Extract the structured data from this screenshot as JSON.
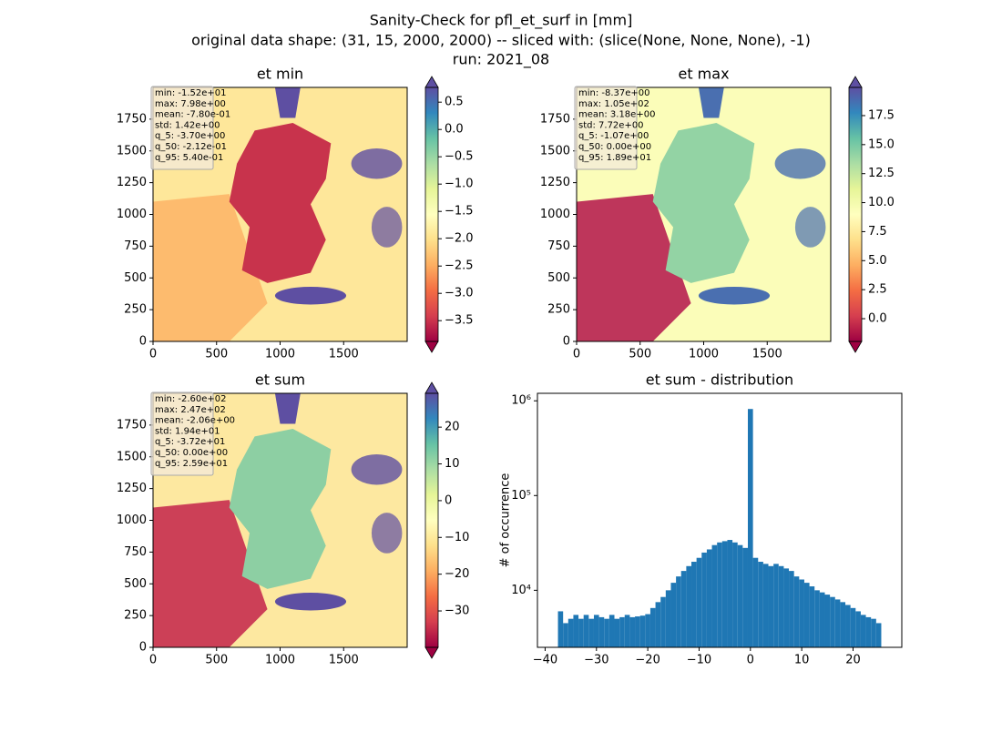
{
  "suptitle": [
    "Sanity-Check for pfl_et_surf in [mm]",
    "original data shape: (31, 15, 2000, 2000) -- sliced with: (slice(None, None, None), -1)",
    "run: 2021_08"
  ],
  "chart_data": [
    {
      "type": "heatmap",
      "title": "et min",
      "stats": [
        "min: -1.52e+01",
        "max: 7.98e+00",
        "mean: -7.80e-01",
        "std: 1.42e+00",
        "q_5: -3.70e+00",
        "q_50: -2.12e-01",
        "q_95: 5.40e-01"
      ],
      "xlim": [
        0,
        2000
      ],
      "ylim": [
        0,
        2000
      ],
      "xticks": [
        0,
        500,
        1000,
        1500
      ],
      "yticks": [
        0,
        250,
        500,
        750,
        1000,
        1250,
        1500,
        1750
      ],
      "colorbar": {
        "clim": [
          -3.88,
          0.77
        ],
        "ticks": [
          0.5,
          {
            "value": 0,
            "label": "0.0"
          },
          {
            "value": -0.5,
            "label": "−0.5"
          },
          {
            "value": -1,
            "label": "−1.0"
          },
          {
            "value": -1.5,
            "label": "−1.5"
          },
          {
            "value": -2,
            "label": "−2.0"
          },
          {
            "value": -2.5,
            "label": "−2.5"
          },
          {
            "value": -3,
            "label": "−3.0"
          },
          {
            "value": -3.5,
            "label": "−3.5"
          }
        ]
      }
    },
    {
      "type": "heatmap",
      "title": "et max",
      "stats": [
        "min: -8.37e+00",
        "max: 1.05e+02",
        "mean: 3.18e+00",
        "std: 7.72e+00",
        "q_5: -1.07e+00",
        "q_50: 0.00e+00",
        "q_95: 1.89e+01"
      ],
      "xlim": [
        0,
        2000
      ],
      "ylim": [
        0,
        2000
      ],
      "xticks": [
        0,
        500,
        1000,
        1500
      ],
      "yticks": [
        0,
        250,
        500,
        750,
        1000,
        1250,
        1500,
        1750
      ],
      "colorbar": {
        "clim": [
          -1.96,
          19.93
        ],
        "ticks": [
          {
            "value": 0,
            "label": "0.0"
          },
          2.5,
          {
            "value": 5,
            "label": "5.0"
          },
          7.5,
          {
            "value": 10,
            "label": "10.0"
          },
          12.5,
          {
            "value": 15,
            "label": "15.0"
          },
          17.5
        ]
      }
    },
    {
      "type": "heatmap",
      "title": "et sum",
      "stats": [
        "min: -2.60e+02",
        "max: 2.47e+02",
        "mean: -2.06e+00",
        "std: 1.94e+01",
        "q_5: -3.72e+01",
        "q_50: 0.00e+00",
        "q_95: 2.59e+01"
      ],
      "xlim": [
        0,
        2000
      ],
      "ylim": [
        0,
        2000
      ],
      "xticks": [
        0,
        500,
        1000,
        1500
      ],
      "yticks": [
        0,
        250,
        500,
        750,
        1000,
        1250,
        1500,
        1750
      ],
      "colorbar": {
        "clim": [
          -39.9,
          29.2
        ],
        "ticks": [
          20,
          10,
          0,
          {
            "value": -10,
            "label": "−10"
          },
          {
            "value": -20,
            "label": "−20"
          },
          {
            "value": -30,
            "label": "−30"
          }
        ]
      }
    },
    {
      "type": "histogram",
      "title": "et sum - distribution",
      "ylabel": "# of occurrence",
      "yscale": "log",
      "color": "#1f77b4",
      "bins": [
        -37.5,
        -36.5,
        -35.5,
        -34.5,
        -33.5,
        -32.5,
        -31.5,
        -30.5,
        -29.5,
        -28.5,
        -27.5,
        -26.5,
        -25.5,
        -24.5,
        -23.5,
        -22.5,
        -21.5,
        -20.5,
        -19.5,
        -18.5,
        -17.5,
        -16.5,
        -15.5,
        -14.5,
        -13.5,
        -12.5,
        -11.5,
        -10.5,
        -9.5,
        -8.5,
        -7.5,
        -6.5,
        -5.5,
        -4.5,
        -3.5,
        -2.5,
        -1.5,
        -0.5,
        0.5,
        1.5,
        2.5,
        3.5,
        4.5,
        5.5,
        6.5,
        7.5,
        8.5,
        9.5,
        10.5,
        11.5,
        12.5,
        13.5,
        14.5,
        15.5,
        16.5,
        17.5,
        18.5,
        19.5,
        20.5,
        21.5,
        22.5,
        23.5,
        24.5,
        25.5
      ],
      "values": [
        6000,
        4500,
        5000,
        5500,
        5000,
        5500,
        5000,
        5500,
        5200,
        5000,
        5500,
        5000,
        5200,
        5500,
        5200,
        5300,
        5400,
        5600,
        6500,
        7500,
        8500,
        10000,
        12000,
        14000,
        16000,
        18000,
        20000,
        22000,
        25000,
        27000,
        30000,
        32000,
        33000,
        34000,
        32000,
        30000,
        28000,
        820000,
        22000,
        20000,
        19000,
        18000,
        19000,
        18000,
        17000,
        16000,
        14000,
        13000,
        12000,
        11000,
        10000,
        9500,
        9000,
        8500,
        8000,
        7500,
        7000,
        6500,
        6000,
        5500,
        5200,
        5000,
        4500
      ],
      "xlim": [
        -41.5,
        29.5
      ],
      "ylim": [
        2500,
        1200000
      ],
      "xticks": [
        {
          "value": -40,
          "label": "−40"
        },
        {
          "value": -30,
          "label": "−30"
        },
        {
          "value": -20,
          "label": "−20"
        },
        {
          "value": -10,
          "label": "−10"
        },
        0,
        10,
        20
      ],
      "yticks": [
        {
          "value": 10000,
          "label": "10⁴"
        },
        {
          "value": 100000,
          "label": "10⁵"
        },
        {
          "value": 1000000,
          "label": "10⁶"
        }
      ]
    }
  ]
}
